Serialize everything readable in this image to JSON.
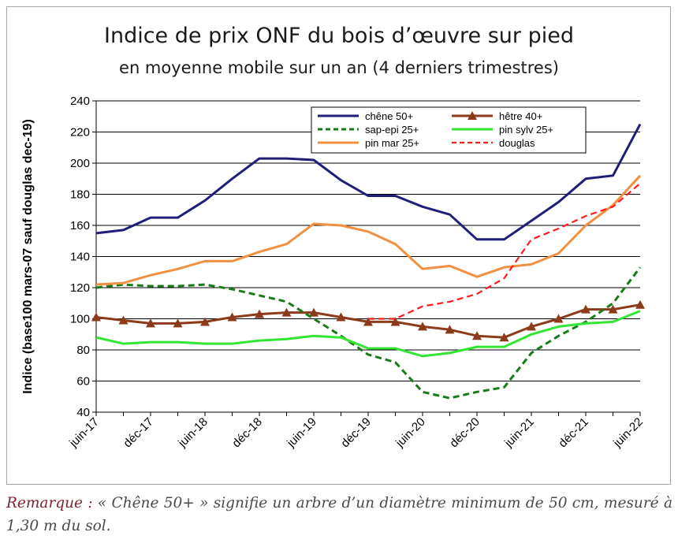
{
  "chart_data": {
    "type": "line",
    "title": "Indice de prix ONF du bois d’œuvre sur pied",
    "subtitle": "en moyenne mobile sur un an (4 derniers trimestres)",
    "ylabel": "Indice (base100 mars-07 sauf douglas dec-19)",
    "xlabel": "",
    "ylim": [
      40,
      240
    ],
    "yticks": [
      40,
      60,
      80,
      100,
      120,
      140,
      160,
      180,
      200,
      220,
      240
    ],
    "xlim": [
      0,
      20
    ],
    "xtick_labels": [
      "juin-17",
      "déc-17",
      "juin-18",
      "déc-18",
      "juin-19",
      "déc-19",
      "juin-20",
      "déc-20",
      "juin-21",
      "déc-21",
      "juin-22"
    ],
    "x": [
      0,
      1,
      2,
      3,
      4,
      5,
      6,
      7,
      8,
      9,
      10,
      11,
      12,
      13,
      14,
      15,
      16,
      17,
      18,
      19,
      20
    ],
    "grid": "horizontal",
    "legend_position": "top-right",
    "series": [
      {
        "name": "chêne 50+",
        "color": "#1f1f7a",
        "style": "solid",
        "marker": "none",
        "x": [
          0,
          1,
          2,
          3,
          4,
          5,
          6,
          7,
          8,
          9,
          10,
          11,
          12,
          13,
          14,
          15,
          16,
          17,
          18,
          19,
          20
        ],
        "values": [
          155,
          157,
          165,
          165,
          176,
          190,
          203,
          203,
          202,
          189,
          179,
          179,
          172,
          167,
          151,
          151,
          163,
          175,
          190,
          192,
          225
        ]
      },
      {
        "name": "hêtre 40+",
        "color": "#8b3a1a",
        "style": "solid",
        "marker": "triangle",
        "x": [
          0,
          1,
          2,
          3,
          4,
          5,
          6,
          7,
          8,
          9,
          10,
          11,
          12,
          13,
          14,
          15,
          16,
          17,
          18,
          19,
          20
        ],
        "values": [
          101,
          99,
          97,
          97,
          98,
          101,
          103,
          104,
          104,
          101,
          98,
          98,
          95,
          93,
          89,
          88,
          95,
          100,
          106,
          106,
          109
        ]
      },
      {
        "name": "sap-epi 25+",
        "color": "#1a7a1a",
        "style": "dashed",
        "marker": "none",
        "x": [
          0,
          1,
          2,
          3,
          4,
          5,
          6,
          7,
          8,
          9,
          10,
          11,
          12,
          13,
          14,
          15,
          16,
          17,
          18,
          19,
          20
        ],
        "values": [
          120,
          122,
          121,
          121,
          122,
          119,
          115,
          111,
          100,
          89,
          77,
          72,
          53,
          49,
          53,
          56,
          78,
          89,
          98,
          110,
          133
        ]
      },
      {
        "name": "pin sylv 25+",
        "color": "#33e633",
        "style": "solid",
        "marker": "none",
        "x": [
          0,
          1,
          2,
          3,
          4,
          5,
          6,
          7,
          8,
          9,
          10,
          11,
          12,
          13,
          14,
          15,
          16,
          17,
          18,
          19,
          20
        ],
        "values": [
          88,
          84,
          85,
          85,
          84,
          84,
          86,
          87,
          89,
          88,
          81,
          81,
          76,
          78,
          82,
          82,
          90,
          95,
          97,
          98,
          105
        ]
      },
      {
        "name": "pin mar 25+",
        "color": "#f09040",
        "style": "solid",
        "marker": "none",
        "x": [
          0,
          1,
          2,
          3,
          4,
          5,
          6,
          7,
          8,
          9,
          10,
          11,
          12,
          13,
          14,
          15,
          16,
          17,
          18,
          19,
          20
        ],
        "values": [
          122,
          123,
          128,
          132,
          137,
          137,
          143,
          148,
          161,
          160,
          156,
          148,
          132,
          134,
          127,
          133,
          135,
          142,
          160,
          173,
          192
        ]
      },
      {
        "name": "douglas",
        "color": "#ff1a1a",
        "style": "dashed",
        "marker": "none",
        "x": [
          10,
          11,
          12,
          13,
          14,
          15,
          16,
          17,
          18,
          19,
          20
        ],
        "values": [
          100,
          100,
          108,
          111,
          116,
          126,
          151,
          158,
          166,
          172,
          187
        ]
      }
    ]
  },
  "note": {
    "lead": "Remarque :",
    "text": " « Chêne 50+ » signifie un arbre d’un diamètre minimum de 50 cm, mesuré à 1,30 m du sol."
  }
}
